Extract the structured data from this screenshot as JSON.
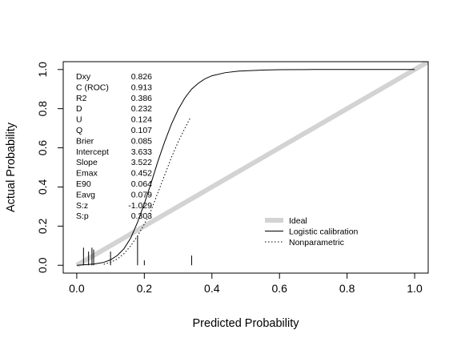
{
  "chart_data": {
    "type": "line",
    "xlabel": "Predicted Probability",
    "ylabel": "Actual Probability",
    "xlim": [
      -0.04,
      1.04
    ],
    "ylim": [
      -0.04,
      1.04
    ],
    "x_ticks": [
      0.0,
      0.2,
      0.4,
      0.6,
      0.8,
      1.0
    ],
    "x_tick_labels": [
      "0.0",
      "0.2",
      "0.4",
      "0.6",
      "0.8",
      "1.0"
    ],
    "y_ticks": [
      0.0,
      0.2,
      0.4,
      0.6,
      0.8,
      1.0
    ],
    "y_tick_labels": [
      "0.0",
      "0.2",
      "0.4",
      "0.6",
      "0.8",
      "1.0"
    ],
    "grid": false,
    "legend": {
      "position": "bottom-right",
      "entries": [
        {
          "name": "Ideal",
          "color": "#d3d3d3",
          "style": "thick-solid"
        },
        {
          "name": "Logistic calibration",
          "color": "#000000",
          "style": "solid"
        },
        {
          "name": "Nonparametric",
          "color": "#000000",
          "style": "dotted"
        }
      ]
    },
    "series": [
      {
        "name": "Ideal",
        "x": [
          0.0,
          1.04
        ],
        "y": [
          0.0,
          1.04
        ]
      },
      {
        "name": "Logistic calibration",
        "x": [
          0.0,
          0.05,
          0.08,
          0.1,
          0.12,
          0.14,
          0.16,
          0.18,
          0.2,
          0.22,
          0.24,
          0.26,
          0.28,
          0.3,
          0.32,
          0.34,
          0.36,
          0.38,
          0.4,
          0.44,
          0.48,
          0.55,
          0.6,
          0.7,
          0.8,
          0.9,
          1.0
        ],
        "y": [
          0.0,
          0.006,
          0.015,
          0.028,
          0.05,
          0.085,
          0.14,
          0.22,
          0.315,
          0.42,
          0.53,
          0.63,
          0.72,
          0.795,
          0.855,
          0.9,
          0.93,
          0.953,
          0.968,
          0.984,
          0.992,
          0.997,
          0.999,
          1.0,
          1.0,
          1.0,
          1.0
        ]
      },
      {
        "name": "Nonparametric",
        "x": [
          0.08,
          0.1,
          0.12,
          0.14,
          0.16,
          0.18,
          0.2,
          0.22,
          0.24,
          0.26,
          0.28,
          0.3,
          0.32,
          0.335
        ],
        "y": [
          0.005,
          0.015,
          0.032,
          0.06,
          0.1,
          0.15,
          0.21,
          0.28,
          0.37,
          0.46,
          0.55,
          0.63,
          0.7,
          0.75
        ]
      }
    ],
    "rug": {
      "positions": [
        0.02,
        0.035,
        0.045,
        0.05,
        0.1,
        0.18,
        0.2,
        0.34
      ],
      "heights": [
        0.09,
        0.07,
        0.09,
        0.08,
        0.07,
        0.15,
        0.025,
        0.05
      ]
    },
    "stats": [
      {
        "label": "Dxy",
        "value": "0.826"
      },
      {
        "label": "C (ROC)",
        "value": "0.913"
      },
      {
        "label": "R2",
        "value": "0.386"
      },
      {
        "label": "D",
        "value": "0.232"
      },
      {
        "label": "U",
        "value": "0.124"
      },
      {
        "label": "Q",
        "value": "0.107"
      },
      {
        "label": "Brier",
        "value": "0.085"
      },
      {
        "label": "Intercept",
        "value": "3.633"
      },
      {
        "label": "Slope",
        "value": "3.522"
      },
      {
        "label": "Emax",
        "value": "0.452"
      },
      {
        "label": "E90",
        "value": "0.064"
      },
      {
        "label": "Eavg",
        "value": "0.079"
      },
      {
        "label": "S:z",
        "value": "-1.029"
      },
      {
        "label": "S:p",
        "value": "0.303"
      }
    ]
  }
}
